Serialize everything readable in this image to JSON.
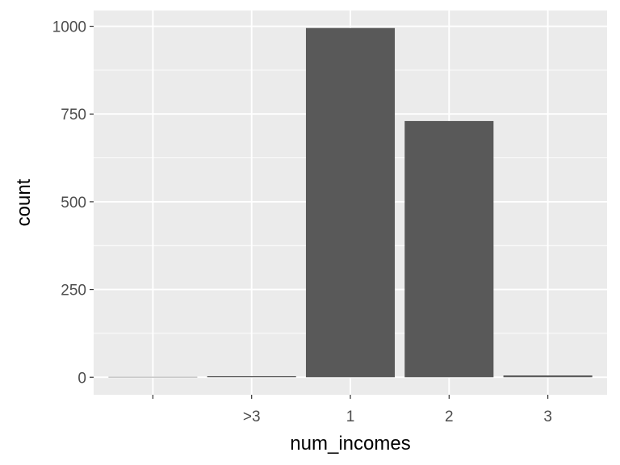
{
  "chart_data": {
    "type": "bar",
    "categories": [
      "",
      ">3",
      "1",
      "2",
      "3"
    ],
    "values": [
      1,
      3,
      995,
      730,
      5
    ],
    "title": "",
    "xlabel": "num_incomes",
    "ylabel": "count",
    "ylim": [
      -50,
      1045
    ],
    "yticks": [
      0,
      250,
      500,
      750,
      1000
    ],
    "grid": true,
    "colors": {
      "panel": "#ebebeb",
      "grid": "#ffffff",
      "bar": "#595959",
      "tick": "#333333",
      "tick_label": "#4d4d4d"
    }
  }
}
